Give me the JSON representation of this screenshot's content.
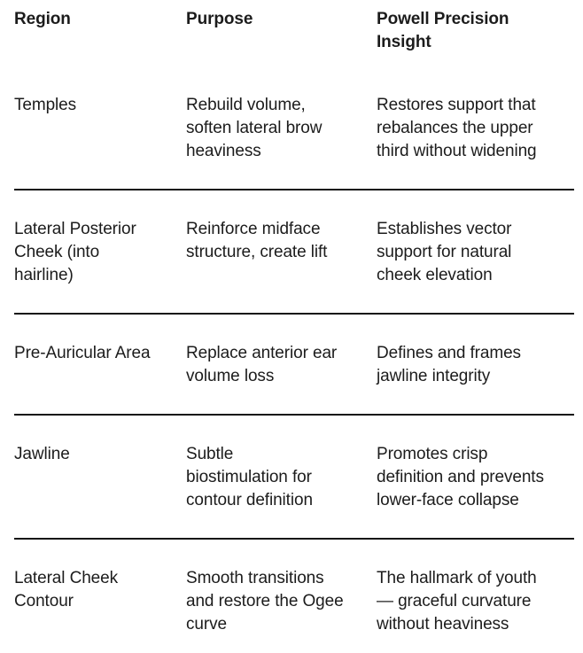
{
  "colors": {
    "text": "#1c1c1c",
    "divider": "#141414",
    "background": "#ffffff"
  },
  "table": {
    "header": [
      [
        "Region"
      ],
      [
        "Purpose"
      ],
      [
        "Powell Precision",
        "Insight"
      ]
    ],
    "rows": [
      [
        [
          "Temples"
        ],
        [
          "Rebuild volume,",
          "soften lateral brow",
          "heaviness"
        ],
        [
          "Restores support that",
          "rebalances the upper",
          "third without widening"
        ]
      ],
      [
        [
          "Lateral Posterior",
          "Cheek (into",
          "hairline)"
        ],
        [
          "Reinforce midface",
          "structure, create lift"
        ],
        [
          "Establishes vector",
          "support for natural",
          "cheek elevation"
        ]
      ],
      [
        [
          "Pre-Auricular Area"
        ],
        [
          "Replace anterior ear",
          "volume loss"
        ],
        [
          "Defines and frames",
          "jawline integrity"
        ]
      ],
      [
        [
          "Jawline"
        ],
        [
          "Subtle",
          "biostimulation for",
          "contour definition"
        ],
        [
          "Promotes crisp",
          "definition and prevents",
          "lower-face collapse"
        ]
      ],
      [
        [
          "Lateral Cheek",
          "Contour"
        ],
        [
          "Smooth transitions",
          "and restore the Ogee",
          "curve"
        ],
        [
          "The hallmark of youth",
          "— graceful curvature",
          "without heaviness"
        ]
      ]
    ]
  }
}
